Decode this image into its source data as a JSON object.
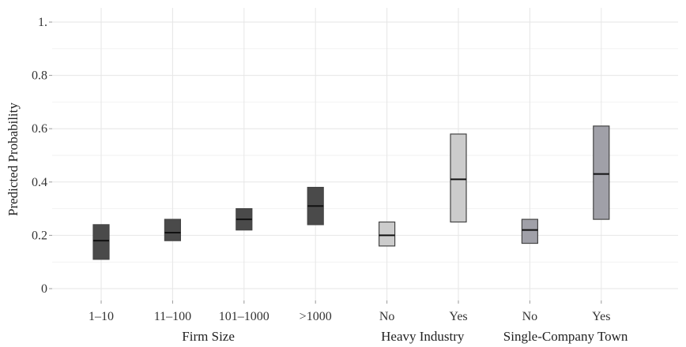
{
  "chart_data": {
    "type": "box",
    "ylabel": "Predicted Probability",
    "ylim": [
      0,
      1.0
    ],
    "yticks": [
      0,
      0.2,
      0.4,
      0.6,
      0.8,
      1.0
    ],
    "ytick_labels": [
      "0",
      "0.2",
      "0.4",
      "0.6",
      "0.8",
      "1."
    ],
    "grid": true,
    "categories": [
      "1–10",
      "11–100",
      "101–1000",
      ">1000",
      "No",
      "Yes",
      "No",
      "Yes"
    ],
    "groups": [
      {
        "label": "Firm Size",
        "start": 0,
        "end": 3
      },
      {
        "label": "Heavy Industry",
        "start": 4,
        "end": 5
      },
      {
        "label": "Single-Company Town",
        "start": 6,
        "end": 7
      }
    ],
    "intervals": [
      {
        "low": 0.11,
        "mid": 0.18,
        "high": 0.24,
        "color": "#4a4a4a"
      },
      {
        "low": 0.18,
        "mid": 0.21,
        "high": 0.26,
        "color": "#4a4a4a"
      },
      {
        "low": 0.22,
        "mid": 0.26,
        "high": 0.3,
        "color": "#4a4a4a"
      },
      {
        "low": 0.24,
        "mid": 0.31,
        "high": 0.38,
        "color": "#4a4a4a"
      },
      {
        "low": 0.16,
        "mid": 0.2,
        "high": 0.25,
        "color": "#cccccc"
      },
      {
        "low": 0.25,
        "mid": 0.41,
        "high": 0.58,
        "color": "#cccccc"
      },
      {
        "low": 0.17,
        "mid": 0.22,
        "high": 0.26,
        "color": "#a0a0a8"
      },
      {
        "low": 0.26,
        "mid": 0.43,
        "high": 0.61,
        "color": "#a0a0a8"
      }
    ]
  }
}
